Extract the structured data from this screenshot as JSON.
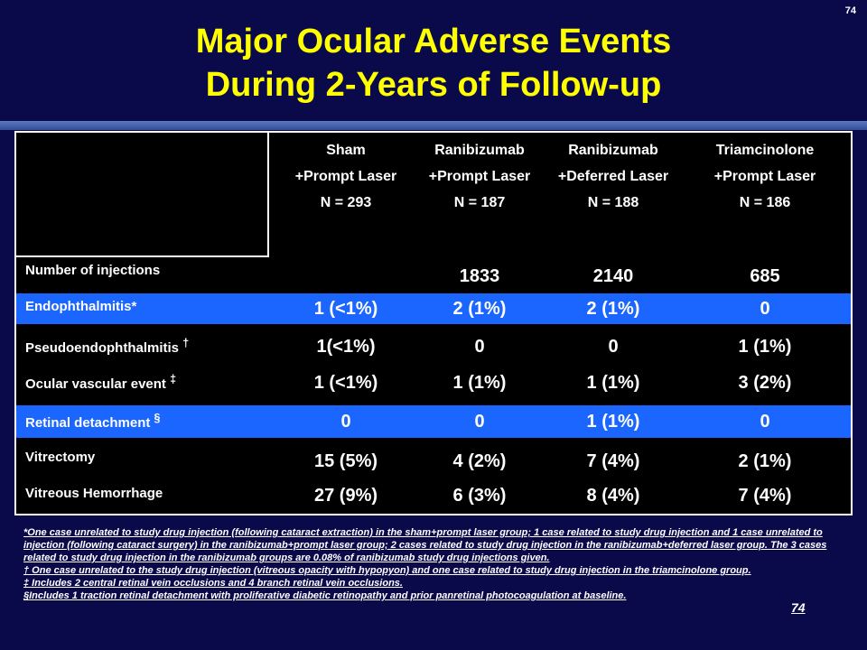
{
  "slide_number": "74",
  "title_line1": "Major Ocular Adverse Events",
  "title_line2": "During 2-Years of Follow-up",
  "columns": [
    {
      "name": "Sham",
      "treatment": "+Prompt Laser",
      "n": "N = 293"
    },
    {
      "name": "Ranibizumab",
      "treatment": "+Prompt Laser",
      "n": "N = 187"
    },
    {
      "name": "Ranibizumab",
      "treatment": "+Deferred Laser",
      "n": "N = 188"
    },
    {
      "name": "Triamcinolone",
      "treatment": "+Prompt Laser",
      "n": "N = 186"
    }
  ],
  "rows": {
    "injections": {
      "label": "Number of injections",
      "values": [
        "",
        "1833",
        "2140",
        "685"
      ]
    },
    "endophthalmitis": {
      "label": "Endophthalmitis*",
      "values": [
        "1 (<1%)",
        "2 (1%)",
        "2 (1%)",
        "0"
      ]
    },
    "pseudo": {
      "label": "Pseudoendophthalmitis",
      "mark": "†",
      "values": [
        "1(<1%)",
        "0",
        "0",
        "1 (1%)"
      ]
    },
    "vascular": {
      "label": "Ocular vascular event",
      "mark": "‡",
      "values": [
        "1 (<1%)",
        "1 (1%)",
        "1 (1%)",
        "3 (2%)"
      ]
    },
    "detachment": {
      "label": "Retinal detachment",
      "mark": "§",
      "values": [
        "0",
        "0",
        "1 (1%)",
        "0"
      ]
    },
    "vitrectomy": {
      "label": "Vitrectomy",
      "values": [
        "15 (5%)",
        "4 (2%)",
        "7 (4%)",
        "2 (1%)"
      ]
    },
    "hemorrhage": {
      "label": "Vitreous Hemorrhage",
      "values": [
        "27 (9%)",
        "6 (3%)",
        "8 (4%)",
        "7 (4%)"
      ]
    }
  },
  "footnotes": {
    "star": "*One case unrelated to study drug injection (following cataract extraction) in the sham+prompt laser group; 1 case related to study drug injection and 1 case unrelated to injection (following cataract surgery) in the ranibizumab+prompt laser group; 2 cases related to study drug injection in the ranibizumab+deferred laser group. The 3 cases related to study drug injection in the ranibizumab groups are 0.08% of ranibizumab study drug injections given.",
    "dagger": "† One case unrelated to the study drug injection (vitreous opacity with hypopyon) and one case related to study drug injection in the triamcinolone group.",
    "ddagger": "‡ Includes 2 central retinal vein occlusions and 4 branch retinal vein occlusions.",
    "section": "§Includes 1 traction retinal detachment with proliferative diabetic retinopathy and prior panretinal photocoagulation at baseline."
  },
  "page_number_bottom": "74"
}
